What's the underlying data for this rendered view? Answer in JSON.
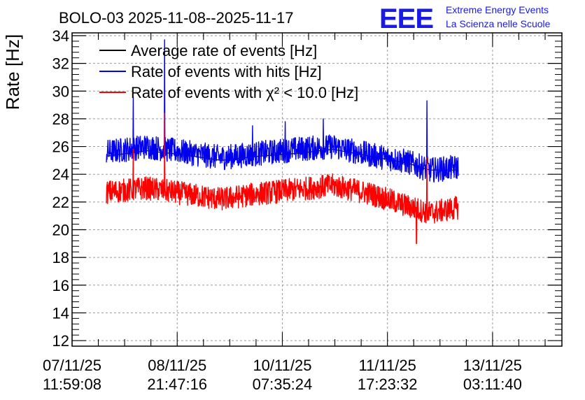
{
  "header": {
    "title": "BOLO-03 2025-11-08--2025-11-17",
    "logo": "EEE",
    "org_line1": "Extreme Energy Events",
    "org_line2": "La Scienza nelle Scuole",
    "logo_color": "#1a1ae6"
  },
  "chart_data": {
    "type": "line",
    "title": "BOLO-03 2025-11-08--2025-11-17",
    "xlabel": "",
    "ylabel": "Rate [Hz]",
    "ylim": [
      11.6,
      34.2
    ],
    "yticks": [
      12,
      14,
      16,
      18,
      20,
      22,
      24,
      26,
      28,
      30,
      32,
      34
    ],
    "xlim": [
      0,
      6.57
    ],
    "xticks": [
      {
        "pos": 0,
        "line1": "07/11/25",
        "line2": "11:59:08"
      },
      {
        "pos": 1.41,
        "line1": "08/11/25",
        "line2": "21:47:16"
      },
      {
        "pos": 2.82,
        "line1": "10/11/25",
        "line2": "07:35:24"
      },
      {
        "pos": 4.23,
        "line1": "11/11/25",
        "line2": "17:23:32"
      },
      {
        "pos": 5.64,
        "line1": "13/11/25",
        "line2": "03:11:40"
      }
    ],
    "grid": true,
    "legend_position": "top-left",
    "x_start": 0.46,
    "x_end": 5.18,
    "series": [
      {
        "name": "Average rate of events [Hz]",
        "legend": "Average rate of events [Hz]",
        "color": "#000000",
        "trend_x": [
          0.46,
          1.0,
          1.5,
          2.0,
          2.5,
          3.0,
          3.5,
          4.0,
          4.5,
          4.8,
          5.18
        ],
        "trend_y": [
          25.3,
          25.7,
          25.4,
          25.0,
          25.3,
          25.5,
          25.8,
          25.3,
          24.8,
          24.3,
          24.3
        ],
        "noise": 0.0
      },
      {
        "name": "Rate of events with hits [Hz]",
        "legend": "Rate of events with hits [Hz]",
        "color": "#0000ee",
        "trend_x": [
          0.46,
          1.0,
          1.5,
          2.0,
          2.5,
          3.0,
          3.5,
          4.0,
          4.5,
          4.8,
          5.18
        ],
        "trend_y": [
          25.6,
          26.0,
          25.6,
          25.2,
          25.5,
          25.8,
          26.0,
          25.4,
          24.9,
          24.3,
          24.5
        ],
        "noise": 0.9,
        "spikes": [
          {
            "x": 0.82,
            "y": 29.6
          },
          {
            "x": 1.24,
            "y": 33.7
          },
          {
            "x": 2.42,
            "y": 27.5
          },
          {
            "x": 2.86,
            "y": 27.8
          },
          {
            "x": 3.37,
            "y": 28.0
          },
          {
            "x": 4.76,
            "y": 29.3
          }
        ]
      },
      {
        "name": "Rate of events with chi2 < 10.0 [Hz]",
        "legend": "Rate of events with χ² < 10.0 [Hz]",
        "color": "#ff0000",
        "trend_x": [
          0.46,
          1.0,
          1.5,
          2.0,
          2.5,
          3.0,
          3.5,
          4.0,
          4.5,
          4.8,
          5.18
        ],
        "trend_y": [
          22.7,
          23.0,
          22.6,
          22.2,
          22.6,
          22.9,
          23.2,
          22.6,
          21.7,
          21.2,
          21.6
        ],
        "noise": 0.85,
        "spikes": [
          {
            "x": 0.82,
            "y": 25.8
          },
          {
            "x": 1.24,
            "y": 28.4
          },
          {
            "x": 4.76,
            "y": 25.2
          },
          {
            "x": 4.62,
            "y": 19.0
          }
        ]
      }
    ]
  }
}
